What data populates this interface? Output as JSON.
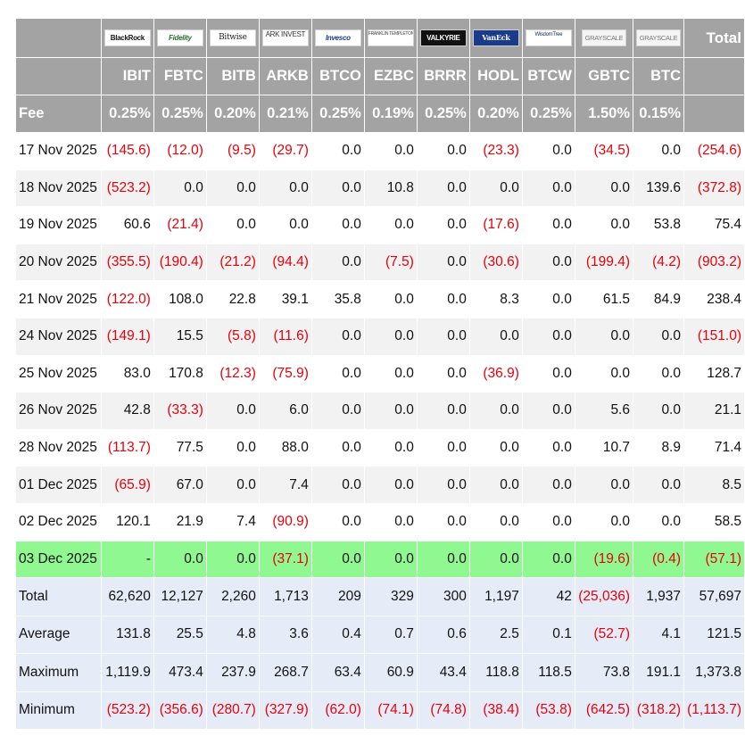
{
  "header": {
    "total_label": "Total",
    "fee_label": "Fee",
    "funds": [
      {
        "ticker": "IBIT",
        "issuer": "BlackRock",
        "fee": "0.25%"
      },
      {
        "ticker": "FBTC",
        "issuer": "Fidelity",
        "fee": "0.25%"
      },
      {
        "ticker": "BITB",
        "issuer": "Bitwise",
        "fee": "0.20%"
      },
      {
        "ticker": "ARKB",
        "issuer": "ARK INVEST",
        "fee": "0.21%"
      },
      {
        "ticker": "BTCO",
        "issuer": "Invesco",
        "fee": "0.25%"
      },
      {
        "ticker": "EZBC",
        "issuer": "FRANKLIN TEMPLETON",
        "fee": "0.19%"
      },
      {
        "ticker": "BRRR",
        "issuer": "VALKYRIE",
        "fee": "0.25%"
      },
      {
        "ticker": "HODL",
        "issuer": "VanEck",
        "fee": "0.20%"
      },
      {
        "ticker": "BTCW",
        "issuer": "WisdomTree",
        "fee": "0.25%"
      },
      {
        "ticker": "GBTC",
        "issuer": "GRAYSCALE",
        "fee": "1.50%"
      },
      {
        "ticker": "BTC",
        "issuer": "GRAYSCALE",
        "fee": "0.15%"
      }
    ]
  },
  "rows": [
    {
      "date": "17 Nov 2025",
      "values": [
        "(145.6)",
        "(12.0)",
        "(9.5)",
        "(29.7)",
        "0.0",
        "0.0",
        "0.0",
        "(23.3)",
        "0.0",
        "(34.5)",
        "0.0"
      ],
      "total": "(254.6)"
    },
    {
      "date": "18 Nov 2025",
      "values": [
        "(523.2)",
        "0.0",
        "0.0",
        "0.0",
        "0.0",
        "10.8",
        "0.0",
        "0.0",
        "0.0",
        "0.0",
        "139.6"
      ],
      "total": "(372.8)"
    },
    {
      "date": "19 Nov 2025",
      "values": [
        "60.6",
        "(21.4)",
        "0.0",
        "0.0",
        "0.0",
        "0.0",
        "0.0",
        "(17.6)",
        "0.0",
        "0.0",
        "53.8"
      ],
      "total": "75.4"
    },
    {
      "date": "20 Nov 2025",
      "values": [
        "(355.5)",
        "(190.4)",
        "(21.2)",
        "(94.4)",
        "0.0",
        "(7.5)",
        "0.0",
        "(30.6)",
        "0.0",
        "(199.4)",
        "(4.2)"
      ],
      "total": "(903.2)"
    },
    {
      "date": "21 Nov 2025",
      "values": [
        "(122.0)",
        "108.0",
        "22.8",
        "39.1",
        "35.8",
        "0.0",
        "0.0",
        "8.3",
        "0.0",
        "61.5",
        "84.9"
      ],
      "total": "238.4"
    },
    {
      "date": "24 Nov 2025",
      "values": [
        "(149.1)",
        "15.5",
        "(5.8)",
        "(11.6)",
        "0.0",
        "0.0",
        "0.0",
        "0.0",
        "0.0",
        "0.0",
        "0.0"
      ],
      "total": "(151.0)"
    },
    {
      "date": "25 Nov 2025",
      "values": [
        "83.0",
        "170.8",
        "(12.3)",
        "(75.9)",
        "0.0",
        "0.0",
        "0.0",
        "(36.9)",
        "0.0",
        "0.0",
        "0.0"
      ],
      "total": "128.7"
    },
    {
      "date": "26 Nov 2025",
      "values": [
        "42.8",
        "(33.3)",
        "0.0",
        "6.0",
        "0.0",
        "0.0",
        "0.0",
        "0.0",
        "0.0",
        "5.6",
        "0.0"
      ],
      "total": "21.1"
    },
    {
      "date": "28 Nov 2025",
      "values": [
        "(113.7)",
        "77.5",
        "0.0",
        "88.0",
        "0.0",
        "0.0",
        "0.0",
        "0.0",
        "0.0",
        "10.7",
        "8.9"
      ],
      "total": "71.4"
    },
    {
      "date": "01 Dec 2025",
      "values": [
        "(65.9)",
        "67.0",
        "0.0",
        "7.4",
        "0.0",
        "0.0",
        "0.0",
        "0.0",
        "0.0",
        "0.0",
        "0.0"
      ],
      "total": "8.5"
    },
    {
      "date": "02 Dec 2025",
      "values": [
        "120.1",
        "21.9",
        "7.4",
        "(90.9)",
        "0.0",
        "0.0",
        "0.0",
        "0.0",
        "0.0",
        "0.0",
        "0.0"
      ],
      "total": "58.5"
    },
    {
      "date": "03 Dec 2025",
      "highlight": true,
      "values": [
        "-",
        "0.0",
        "0.0",
        "(37.1)",
        "0.0",
        "0.0",
        "0.0",
        "0.0",
        "0.0",
        "(19.6)",
        "(0.4)"
      ],
      "total": "(57.1)"
    }
  ],
  "summary": [
    {
      "label": "Total",
      "values": [
        "62,620",
        "12,127",
        "2,260",
        "1,713",
        "209",
        "329",
        "300",
        "1,197",
        "42",
        "(25,036)",
        "1,937"
      ],
      "total": "57,697"
    },
    {
      "label": "Average",
      "values": [
        "131.8",
        "25.5",
        "4.8",
        "3.6",
        "0.4",
        "0.7",
        "0.6",
        "2.5",
        "0.1",
        "(52.7)",
        "4.1"
      ],
      "total": "121.5"
    },
    {
      "label": "Maximum",
      "values": [
        "1,119.9",
        "473.4",
        "237.9",
        "268.7",
        "63.4",
        "60.9",
        "43.4",
        "118.8",
        "118.5",
        "73.8",
        "191.1"
      ],
      "total": "1,373.8"
    },
    {
      "label": "Minimum",
      "values": [
        "(523.2)",
        "(356.6)",
        "(280.7)",
        "(327.9)",
        "(62.0)",
        "(74.1)",
        "(74.8)",
        "(38.4)",
        "(53.8)",
        "(642.5)",
        "(318.2)"
      ],
      "total": "(1,113.7)"
    }
  ],
  "colors": {
    "header_bg": "#a3a3a3",
    "negative": "#e8000b",
    "highlight_row": "#90f890",
    "summary_bg": "#e6ecf7",
    "stripe": "#f2f2f2"
  }
}
